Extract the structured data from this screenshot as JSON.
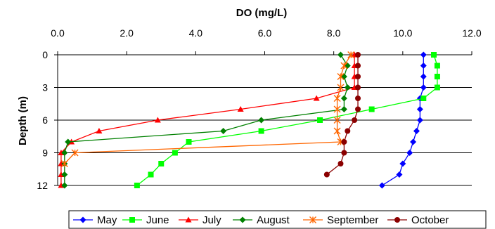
{
  "chart_data": {
    "type": "line",
    "title": "DO (mg/L)",
    "xlabel": "DO (mg/L)",
    "ylabel": "Depth (m)",
    "xlim": [
      0,
      12
    ],
    "ylim": [
      0,
      12
    ],
    "y_reversed": true,
    "x_ticks": [
      "0.0",
      "2.0",
      "4.0",
      "6.0",
      "8.0",
      "10.0",
      "12.0"
    ],
    "y_ticks": [
      "0",
      "3",
      "6",
      "9",
      "12"
    ],
    "x_axis_position": "top",
    "grid": "horizontal",
    "legend_position": "bottom",
    "series": [
      {
        "name": "May",
        "color": "#0000ff",
        "marker": "diamond",
        "points": [
          [
            10.6,
            0
          ],
          [
            10.6,
            1
          ],
          [
            10.6,
            2
          ],
          [
            10.6,
            3
          ],
          [
            10.5,
            4
          ],
          [
            10.5,
            5
          ],
          [
            10.5,
            6
          ],
          [
            10.4,
            7
          ],
          [
            10.3,
            8
          ],
          [
            10.2,
            9
          ],
          [
            10.0,
            10
          ],
          [
            9.9,
            11
          ],
          [
            9.4,
            12
          ]
        ]
      },
      {
        "name": "June",
        "color": "#00ff00",
        "marker": "square",
        "points": [
          [
            10.9,
            0
          ],
          [
            11.0,
            1
          ],
          [
            11.0,
            2
          ],
          [
            11.0,
            3
          ],
          [
            10.6,
            4
          ],
          [
            9.1,
            5
          ],
          [
            7.6,
            6
          ],
          [
            5.9,
            7
          ],
          [
            3.8,
            8
          ],
          [
            3.4,
            9
          ],
          [
            3.0,
            10
          ],
          [
            2.7,
            11
          ],
          [
            2.3,
            12
          ]
        ]
      },
      {
        "name": "July",
        "color": "#ff0000",
        "marker": "triangle",
        "points": [
          [
            8.6,
            0
          ],
          [
            8.6,
            1
          ],
          [
            8.6,
            2
          ],
          [
            8.6,
            3
          ],
          [
            7.5,
            4
          ],
          [
            5.3,
            5
          ],
          [
            2.9,
            6
          ],
          [
            1.2,
            7
          ],
          [
            0.4,
            8
          ],
          [
            0.1,
            9
          ],
          [
            0.1,
            10
          ],
          [
            0.1,
            11
          ],
          [
            0.1,
            12
          ]
        ]
      },
      {
        "name": "August",
        "color": "#008000",
        "marker": "diamond",
        "points": [
          [
            8.2,
            0
          ],
          [
            8.4,
            1
          ],
          [
            8.3,
            2
          ],
          [
            8.4,
            3
          ],
          [
            8.3,
            4
          ],
          [
            8.3,
            5
          ],
          [
            5.9,
            6
          ],
          [
            4.8,
            7
          ],
          [
            0.3,
            8
          ],
          [
            0.2,
            9
          ],
          [
            0.2,
            10
          ],
          [
            0.2,
            11
          ],
          [
            0.2,
            12
          ]
        ]
      },
      {
        "name": "September",
        "color": "#ff6600",
        "marker": "star",
        "points": [
          [
            8.5,
            0
          ],
          [
            8.3,
            1
          ],
          [
            8.2,
            2
          ],
          [
            8.2,
            3
          ],
          [
            8.1,
            4
          ],
          [
            8.1,
            5
          ],
          [
            8.1,
            6
          ],
          [
            8.1,
            7
          ],
          [
            8.2,
            8
          ],
          [
            0.5,
            9
          ],
          [
            0.2,
            10
          ]
        ]
      },
      {
        "name": "October",
        "color": "#8b0000",
        "marker": "circle",
        "points": [
          [
            8.7,
            0
          ],
          [
            8.7,
            1
          ],
          [
            8.7,
            2
          ],
          [
            8.7,
            3
          ],
          [
            8.7,
            4
          ],
          [
            8.7,
            5
          ],
          [
            8.6,
            6
          ],
          [
            8.4,
            7
          ],
          [
            8.3,
            8
          ],
          [
            8.3,
            9
          ],
          [
            8.2,
            10
          ],
          [
            7.8,
            11
          ]
        ]
      }
    ]
  }
}
